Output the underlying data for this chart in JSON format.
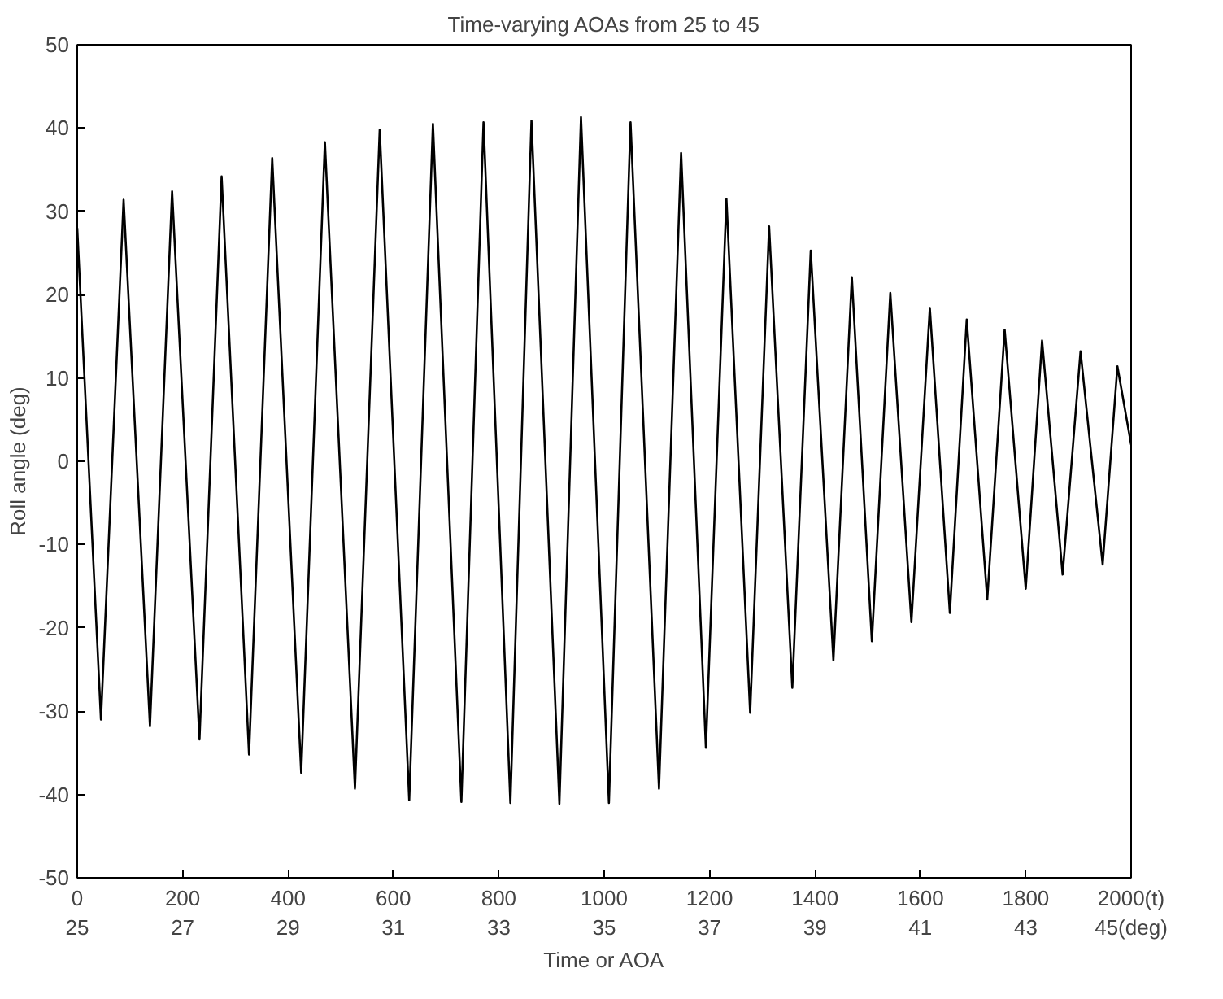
{
  "chart_data": {
    "type": "line",
    "title": "Time-varying AOAs from 25 to 45",
    "xlabel": "Time or AOA",
    "ylabel": "Roll angle (deg)",
    "xlim": [
      0,
      2000
    ],
    "ylim": [
      -50,
      50
    ],
    "xticks": [
      0,
      200,
      400,
      600,
      800,
      1000,
      1200,
      1400,
      1600,
      1800,
      {
        "value": 2000,
        "label": "2000(t)"
      }
    ],
    "x2lim": [
      25,
      45
    ],
    "x2ticks": [
      25,
      27,
      29,
      31,
      33,
      35,
      37,
      39,
      41,
      43,
      {
        "value": 45,
        "label": "45(deg)"
      }
    ],
    "yticks": [
      -50,
      -40,
      -30,
      -20,
      -10,
      0,
      10,
      20,
      30,
      40,
      50
    ],
    "grid": false,
    "line_style": "solid",
    "marker": "none",
    "series": [
      {
        "color": "#000000",
        "x": [
          0,
          45,
          88,
          138,
          180,
          232,
          274,
          326,
          370,
          425,
          470,
          527,
          574,
          630,
          675,
          729,
          771,
          822,
          862,
          915,
          956,
          1009,
          1050,
          1104,
          1146,
          1193,
          1232,
          1277,
          1313,
          1357,
          1392,
          1435,
          1470,
          1508,
          1543,
          1583,
          1618,
          1656,
          1688,
          1727,
          1760,
          1800,
          1831,
          1870,
          1904,
          1946,
          1974,
          2000
        ],
        "values": [
          28,
          -31.0,
          31.4,
          -31.8,
          32.4,
          -33.4,
          34.2,
          -35.2,
          36.4,
          -37.4,
          38.3,
          -39.3,
          39.8,
          -40.7,
          40.5,
          -40.9,
          40.7,
          -41.0,
          40.9,
          -41.1,
          41.3,
          -41.0,
          40.7,
          -39.3,
          37.0,
          -34.4,
          31.5,
          -30.2,
          28.2,
          -27.2,
          25.3,
          -23.9,
          22.1,
          -21.6,
          20.2,
          -19.3,
          18.4,
          -18.2,
          17.0,
          -16.6,
          15.8,
          -15.3,
          14.5,
          -13.6,
          13.2,
          -12.4,
          11.4,
          2
        ]
      }
    ]
  }
}
